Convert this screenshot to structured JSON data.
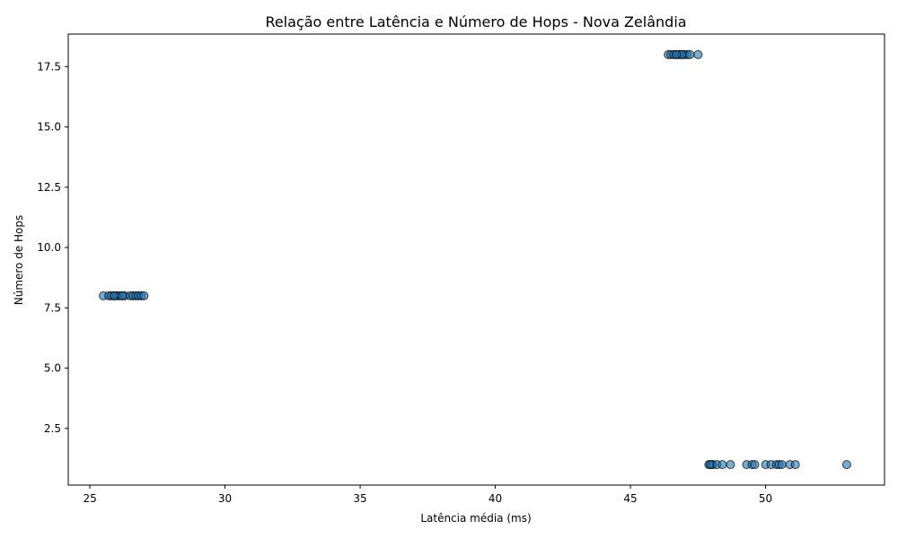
{
  "chart_data": {
    "type": "scatter",
    "title": "Relação entre Latência e Número de Hops - Nova Zelândia",
    "xlabel": "Latência média (ms)",
    "ylabel": "Número de Hops",
    "xlim": [
      24.2,
      54.4
    ],
    "ylim": [
      0.15,
      18.85
    ],
    "xticks": [
      25,
      30,
      35,
      40,
      45,
      50
    ],
    "xtick_labels": [
      "25",
      "30",
      "35",
      "40",
      "45",
      "50"
    ],
    "yticks": [
      2.5,
      5.0,
      7.5,
      10.0,
      12.5,
      15.0,
      17.5
    ],
    "ytick_labels": [
      "2.5",
      "5.0",
      "7.5",
      "10.0",
      "12.5",
      "15.0",
      "17.5"
    ],
    "grid": false,
    "marker_color": "#1f77b4",
    "marker_edge_color": "#000000",
    "marker_alpha": 0.6,
    "points": [
      {
        "x": 25.5,
        "y": 8
      },
      {
        "x": 25.7,
        "y": 8
      },
      {
        "x": 25.8,
        "y": 8
      },
      {
        "x": 25.9,
        "y": 8
      },
      {
        "x": 26.0,
        "y": 8
      },
      {
        "x": 26.1,
        "y": 8
      },
      {
        "x": 26.2,
        "y": 8
      },
      {
        "x": 26.3,
        "y": 8
      },
      {
        "x": 26.5,
        "y": 8
      },
      {
        "x": 26.6,
        "y": 8
      },
      {
        "x": 26.7,
        "y": 8
      },
      {
        "x": 26.8,
        "y": 8
      },
      {
        "x": 26.9,
        "y": 8
      },
      {
        "x": 27.0,
        "y": 8
      },
      {
        "x": 26.2,
        "y": 8
      },
      {
        "x": 25.9,
        "y": 8
      },
      {
        "x": 46.4,
        "y": 18
      },
      {
        "x": 46.5,
        "y": 18
      },
      {
        "x": 46.6,
        "y": 18
      },
      {
        "x": 46.7,
        "y": 18
      },
      {
        "x": 46.8,
        "y": 18
      },
      {
        "x": 46.9,
        "y": 18
      },
      {
        "x": 47.0,
        "y": 18
      },
      {
        "x": 47.1,
        "y": 18
      },
      {
        "x": 47.2,
        "y": 18
      },
      {
        "x": 47.5,
        "y": 18
      },
      {
        "x": 46.9,
        "y": 18
      },
      {
        "x": 46.7,
        "y": 18
      },
      {
        "x": 47.9,
        "y": 1
      },
      {
        "x": 48.0,
        "y": 1
      },
      {
        "x": 48.05,
        "y": 1
      },
      {
        "x": 47.95,
        "y": 1
      },
      {
        "x": 48.2,
        "y": 1
      },
      {
        "x": 48.4,
        "y": 1
      },
      {
        "x": 48.7,
        "y": 1
      },
      {
        "x": 49.3,
        "y": 1
      },
      {
        "x": 49.5,
        "y": 1
      },
      {
        "x": 49.6,
        "y": 1
      },
      {
        "x": 50.0,
        "y": 1
      },
      {
        "x": 50.2,
        "y": 1
      },
      {
        "x": 50.4,
        "y": 1
      },
      {
        "x": 50.5,
        "y": 1
      },
      {
        "x": 50.6,
        "y": 1
      },
      {
        "x": 50.9,
        "y": 1
      },
      {
        "x": 51.1,
        "y": 1
      },
      {
        "x": 53.0,
        "y": 1
      }
    ]
  }
}
